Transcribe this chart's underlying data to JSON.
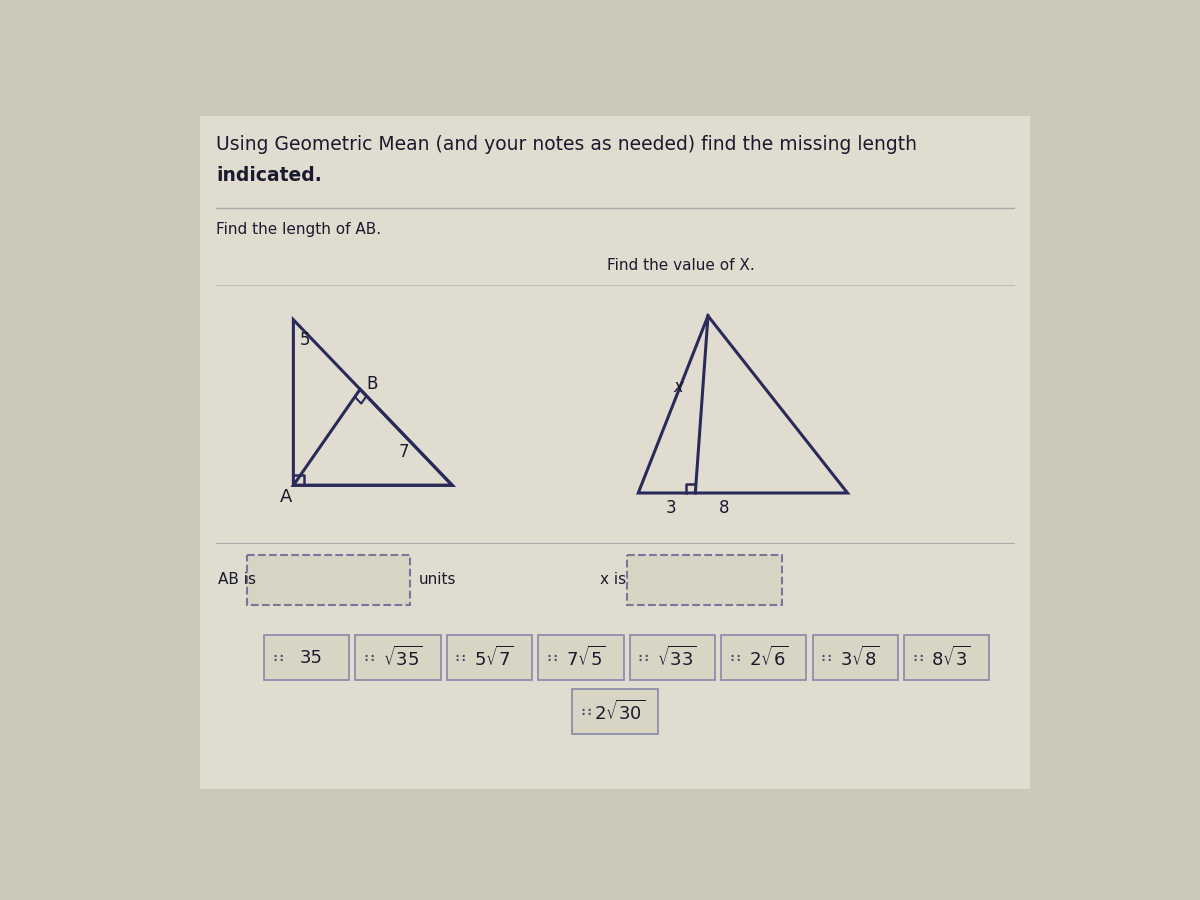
{
  "page_bg": "#ccc9b8",
  "inner_bg": "#d8d4c4",
  "title_line1": "Using Geometric Mean (and your notes as needed) find the missing length",
  "title_line2": "indicated.",
  "find_ab_label": "Find the length of AB.",
  "find_x_label": "Find the value of X.",
  "ab_is_label": "AB is",
  "ab_units_label": "units",
  "x_is_label": "x is",
  "line_color": "#2a2a5a",
  "text_color": "#1a1a2e",
  "box_fill": "#d8d4c4",
  "button_fill": "#d8d5c5",
  "button_edge": "#8888aa"
}
